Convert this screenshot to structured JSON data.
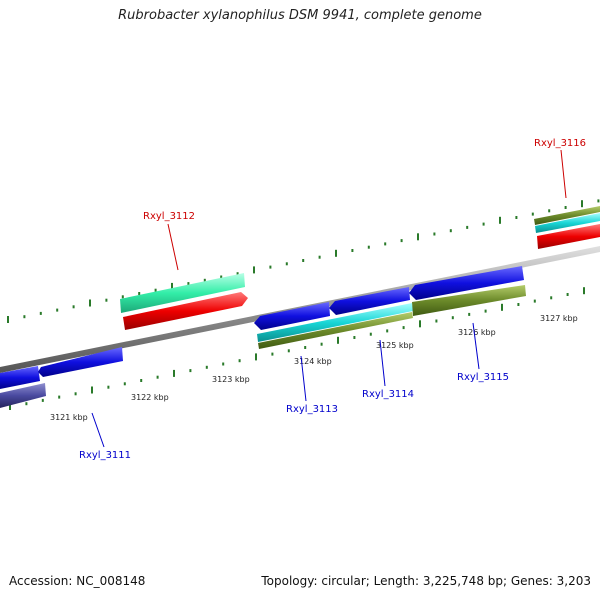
{
  "title": "Rubrobacter xylanophilus DSM 9941, complete genome",
  "footer": {
    "accession": "Accession: NC_008148",
    "summary": "Topology: circular; Length: 3,225,748 bp; Genes: 3,203"
  },
  "colors": {
    "backbone": "#8e8e8e",
    "ticks": "#2a7a2a",
    "forward_label": "#cc0000",
    "reverse_label": "#0000cc"
  },
  "tick_labels": [
    "3121 kbp",
    "3122 kbp",
    "3123 kbp",
    "3124 kbp",
    "3125 kbp",
    "3126 kbp",
    "3127 kbp"
  ],
  "genes": [
    {
      "name": "Rxyl_3111",
      "strand": "reverse"
    },
    {
      "name": "Rxyl_3112",
      "strand": "forward"
    },
    {
      "name": "Rxyl_3113",
      "strand": "reverse"
    },
    {
      "name": "Rxyl_3114",
      "strand": "reverse"
    },
    {
      "name": "Rxyl_3115",
      "strand": "reverse"
    },
    {
      "name": "Rxyl_3116",
      "strand": "forward"
    }
  ]
}
